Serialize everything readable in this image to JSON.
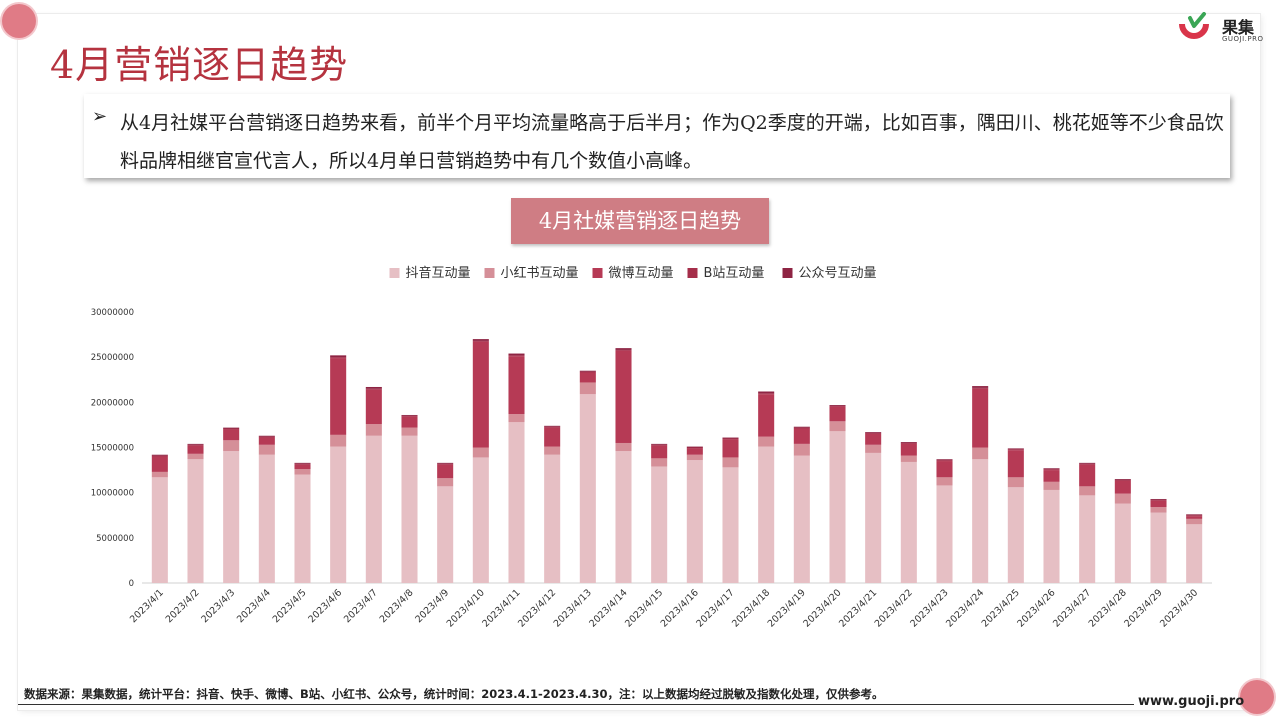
{
  "page": {
    "title": "4月营销逐日趋势",
    "brand_name": "果集",
    "brand_sub": "GUOJI.PRO",
    "summary": "从4月社媒平台营销逐日趋势来看，前半个月平均流量略高于后半月；作为Q2季度的开端，比如百事，隅田川、桃花姬等不少食品饮料品牌相继官宣代言人，所以4月单日营销趋势中有几个数值小高峰。",
    "chart_title": "4月社媒营销逐日趋势",
    "footer_source": "数据来源：果集数据，统计平台：抖音、快手、微博、B站、小红书、公众号，统计时间：2023.4.1-2023.4.30，注：以上数据均经过脱敏及指数化处理，仅供参考。",
    "footer_url": "www.guoji.pro",
    "colors": {
      "accent": "#b5333f",
      "title_box": "#cf7d84"
    }
  },
  "chart_data": {
    "type": "bar",
    "stacked": true,
    "title": "4月社媒营销逐日趋势",
    "legend_position": "top",
    "ylim": [
      0,
      30000000
    ],
    "yticks": [
      0,
      5000000,
      10000000,
      15000000,
      20000000,
      25000000,
      30000000
    ],
    "grid": false,
    "categories": [
      "2023/4/1",
      "2023/4/2",
      "2023/4/3",
      "2023/4/4",
      "2023/4/5",
      "2023/4/6",
      "2023/4/7",
      "2023/4/8",
      "2023/4/9",
      "2023/4/10",
      "2023/4/11",
      "2023/4/12",
      "2023/4/13",
      "2023/4/14",
      "2023/4/15",
      "2023/4/16",
      "2023/4/17",
      "2023/4/18",
      "2023/4/19",
      "2023/4/20",
      "2023/4/21",
      "2023/4/22",
      "2023/4/23",
      "2023/4/24",
      "2023/4/25",
      "2023/4/26",
      "2023/4/27",
      "2023/4/28",
      "2023/4/29",
      "2023/4/30"
    ],
    "series": [
      {
        "name": "抖音互动量",
        "color": "#e6bfc4",
        "values": [
          11700000,
          13700000,
          14600000,
          14200000,
          12000000,
          15100000,
          16300000,
          16300000,
          10700000,
          13900000,
          17800000,
          14200000,
          20900000,
          14600000,
          12900000,
          13600000,
          12800000,
          15100000,
          14100000,
          16800000,
          14400000,
          13400000,
          10800000,
          13700000,
          10600000,
          10300000,
          9700000,
          8800000,
          7800000,
          6500000
        ]
      },
      {
        "name": "小红书互动量",
        "color": "#d58f98",
        "values": [
          600000,
          600000,
          1200000,
          1100000,
          600000,
          1300000,
          1300000,
          900000,
          900000,
          1100000,
          900000,
          900000,
          1300000,
          900000,
          900000,
          600000,
          1100000,
          1100000,
          1300000,
          1100000,
          900000,
          700000,
          900000,
          1300000,
          1100000,
          900000,
          1000000,
          1100000,
          600000,
          600000
        ]
      },
      {
        "name": "微博互动量",
        "color": "#b63a55",
        "values": [
          1700000,
          900000,
          1200000,
          800000,
          500000,
          8500000,
          3800000,
          1200000,
          1500000,
          11700000,
          6400000,
          2100000,
          1100000,
          10200000,
          1400000,
          700000,
          2000000,
          4700000,
          1700000,
          1600000,
          1200000,
          1300000,
          1800000,
          6500000,
          3000000,
          1300000,
          2400000,
          1400000,
          700000,
          300000
        ]
      },
      {
        "name": "B站互动量",
        "color": "#a52e4a",
        "values": [
          100000,
          100000,
          100000,
          100000,
          100000,
          100000,
          100000,
          100000,
          100000,
          100000,
          100000,
          100000,
          100000,
          100000,
          100000,
          100000,
          100000,
          100000,
          100000,
          100000,
          100000,
          100000,
          100000,
          100000,
          100000,
          100000,
          100000,
          100000,
          100000,
          100000
        ]
      },
      {
        "name": "公众号互动量",
        "color": "#8e2443",
        "values": [
          100000,
          100000,
          100000,
          100000,
          100000,
          200000,
          200000,
          100000,
          100000,
          200000,
          200000,
          100000,
          100000,
          200000,
          100000,
          100000,
          100000,
          200000,
          100000,
          100000,
          100000,
          100000,
          100000,
          200000,
          100000,
          100000,
          100000,
          100000,
          100000,
          100000
        ]
      }
    ]
  }
}
